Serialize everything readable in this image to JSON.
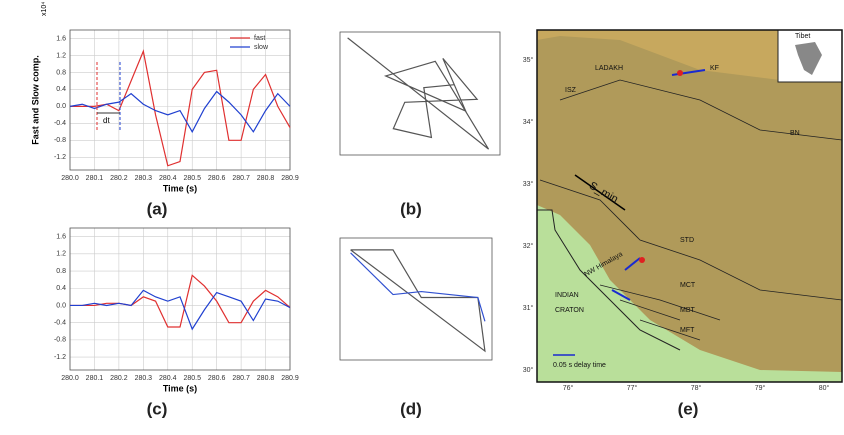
{
  "chart_data": [
    {
      "type": "line",
      "caption": "(a)",
      "ylabel": "Fast and Slow comp.",
      "xlabel": "Time (s)",
      "exponent": "x10⁴",
      "annotation": "dt",
      "legend": "upper right",
      "grid": true,
      "x": [
        280.0,
        280.05,
        280.1,
        280.15,
        280.2,
        280.25,
        280.3,
        280.35,
        280.4,
        280.45,
        280.5,
        280.55,
        280.6,
        280.65,
        280.7,
        280.75,
        280.8,
        280.85,
        280.9
      ],
      "series": [
        {
          "name": "fast",
          "color": "#e03030",
          "values": [
            0.0,
            0.0,
            0.0,
            0.05,
            -0.1,
            0.6,
            1.3,
            -0.2,
            -1.4,
            -1.3,
            0.4,
            0.8,
            0.85,
            -0.8,
            -0.8,
            0.4,
            0.75,
            0.0,
            -0.5
          ]
        },
        {
          "name": "slow",
          "color": "#2040d0",
          "values": [
            0.0,
            0.05,
            -0.05,
            0.05,
            0.1,
            0.3,
            0.05,
            -0.1,
            -0.2,
            -0.1,
            -0.6,
            -0.05,
            0.35,
            0.1,
            -0.2,
            -0.6,
            -0.1,
            0.3,
            0.0
          ]
        }
      ],
      "xlim": [
        280.0,
        280.9
      ],
      "ylim": [
        -1.5,
        1.8
      ],
      "xticks": [
        {
          "value": 280.0,
          "label": "280.0"
        },
        280.1,
        280.2,
        280.3,
        280.4,
        280.5,
        280.6,
        280.7,
        280.8,
        280.9
      ],
      "yticks": [
        1.6,
        1.2,
        0.8,
        0.4,
        {
          "value": 0,
          "label": "0.0"
        },
        -0.4,
        -0.8,
        -1.2
      ]
    },
    {
      "type": "line",
      "caption": "(b)",
      "grid": false,
      "x": [
        -0.95,
        0.9,
        0.2,
        -0.45,
        0.6,
        0.3,
        0.75,
        -0.2,
        -0.35,
        0.15,
        0.05,
        0.45
      ],
      "series": [
        {
          "color": "#555555",
          "values": [
            0.95,
            -0.95,
            0.55,
            0.3,
            -0.3,
            0.6,
            -0.1,
            -0.15,
            -0.6,
            -0.75,
            0.1,
            0.15
          ]
        }
      ],
      "xlim": [
        -1.05,
        1.05
      ],
      "ylim": [
        -1.05,
        1.05
      ]
    },
    {
      "type": "line",
      "caption": "(c)",
      "xlabel": "Time (s)",
      "grid": true,
      "x": [
        280.0,
        280.05,
        280.1,
        280.15,
        280.2,
        280.25,
        280.3,
        280.35,
        280.4,
        280.45,
        280.5,
        280.55,
        280.6,
        280.65,
        280.7,
        280.75,
        280.8,
        280.85,
        280.9
      ],
      "series": [
        {
          "color": "#e03030",
          "values": [
            0.0,
            0.0,
            0.0,
            0.05,
            0.05,
            0.0,
            0.2,
            0.1,
            -0.5,
            -0.5,
            0.7,
            0.45,
            0.1,
            -0.4,
            -0.4,
            0.1,
            0.35,
            0.2,
            -0.05
          ]
        },
        {
          "color": "#2040d0",
          "values": [
            0.0,
            0.0,
            0.05,
            0.0,
            0.05,
            0.0,
            0.35,
            0.2,
            0.1,
            0.2,
            -0.55,
            -0.1,
            0.3,
            0.2,
            0.1,
            -0.35,
            0.15,
            0.1,
            -0.05
          ]
        }
      ],
      "xlim": [
        280.0,
        280.9
      ],
      "ylim": [
        -1.5,
        1.8
      ],
      "xticks": [
        {
          "value": 280.0,
          "label": "280.0"
        },
        280.1,
        280.2,
        280.3,
        280.4,
        280.5,
        280.6,
        280.7,
        280.8,
        280.9
      ],
      "yticks": [
        1.6,
        1.2,
        0.8,
        0.4,
        {
          "value": 0,
          "label": "0.0"
        },
        -0.4,
        -0.8,
        -1.2
      ]
    },
    {
      "type": "line",
      "caption": "(d)",
      "grid": false,
      "x": [
        -0.9,
        -0.3,
        0.1,
        0.9,
        1.0,
        -0.9
      ],
      "series": [
        {
          "color": "#555555",
          "values": [
            0.8,
            0.8,
            0.0,
            0.0,
            -0.9,
            0.8
          ]
        },
        {
          "color": "#3050d0",
          "values": [
            0.75,
            0.05,
            0.1,
            0.0,
            -0.4,
            null
          ]
        }
      ],
      "xlim": [
        -1.05,
        1.1
      ],
      "ylim": [
        -1.05,
        1.0
      ]
    }
  ],
  "map": {
    "caption": "(e)",
    "labels": [
      "Tibet",
      "LADAKH",
      "KF",
      "ISZ",
      "BN",
      "S_min",
      "STD",
      "NW Himalaya",
      "MCT",
      "MBT",
      "MFT",
      "INDIAN",
      "CRATON",
      "0.05 s delay time"
    ],
    "lon": [
      "76°",
      "77°",
      "78°",
      "79°",
      "80°"
    ],
    "lat": [
      "35°",
      "34°",
      "33°",
      "32°",
      "31°",
      "30°"
    ]
  }
}
